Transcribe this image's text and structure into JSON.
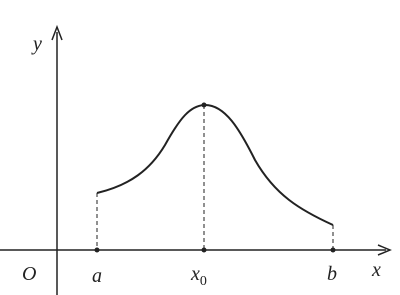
{
  "axes": {
    "y_label": "y",
    "x_label": "x",
    "origin": "O"
  },
  "points": [
    {
      "label": "a"
    },
    {
      "label": "x",
      "subscript": "0"
    },
    {
      "label": "b"
    }
  ]
}
